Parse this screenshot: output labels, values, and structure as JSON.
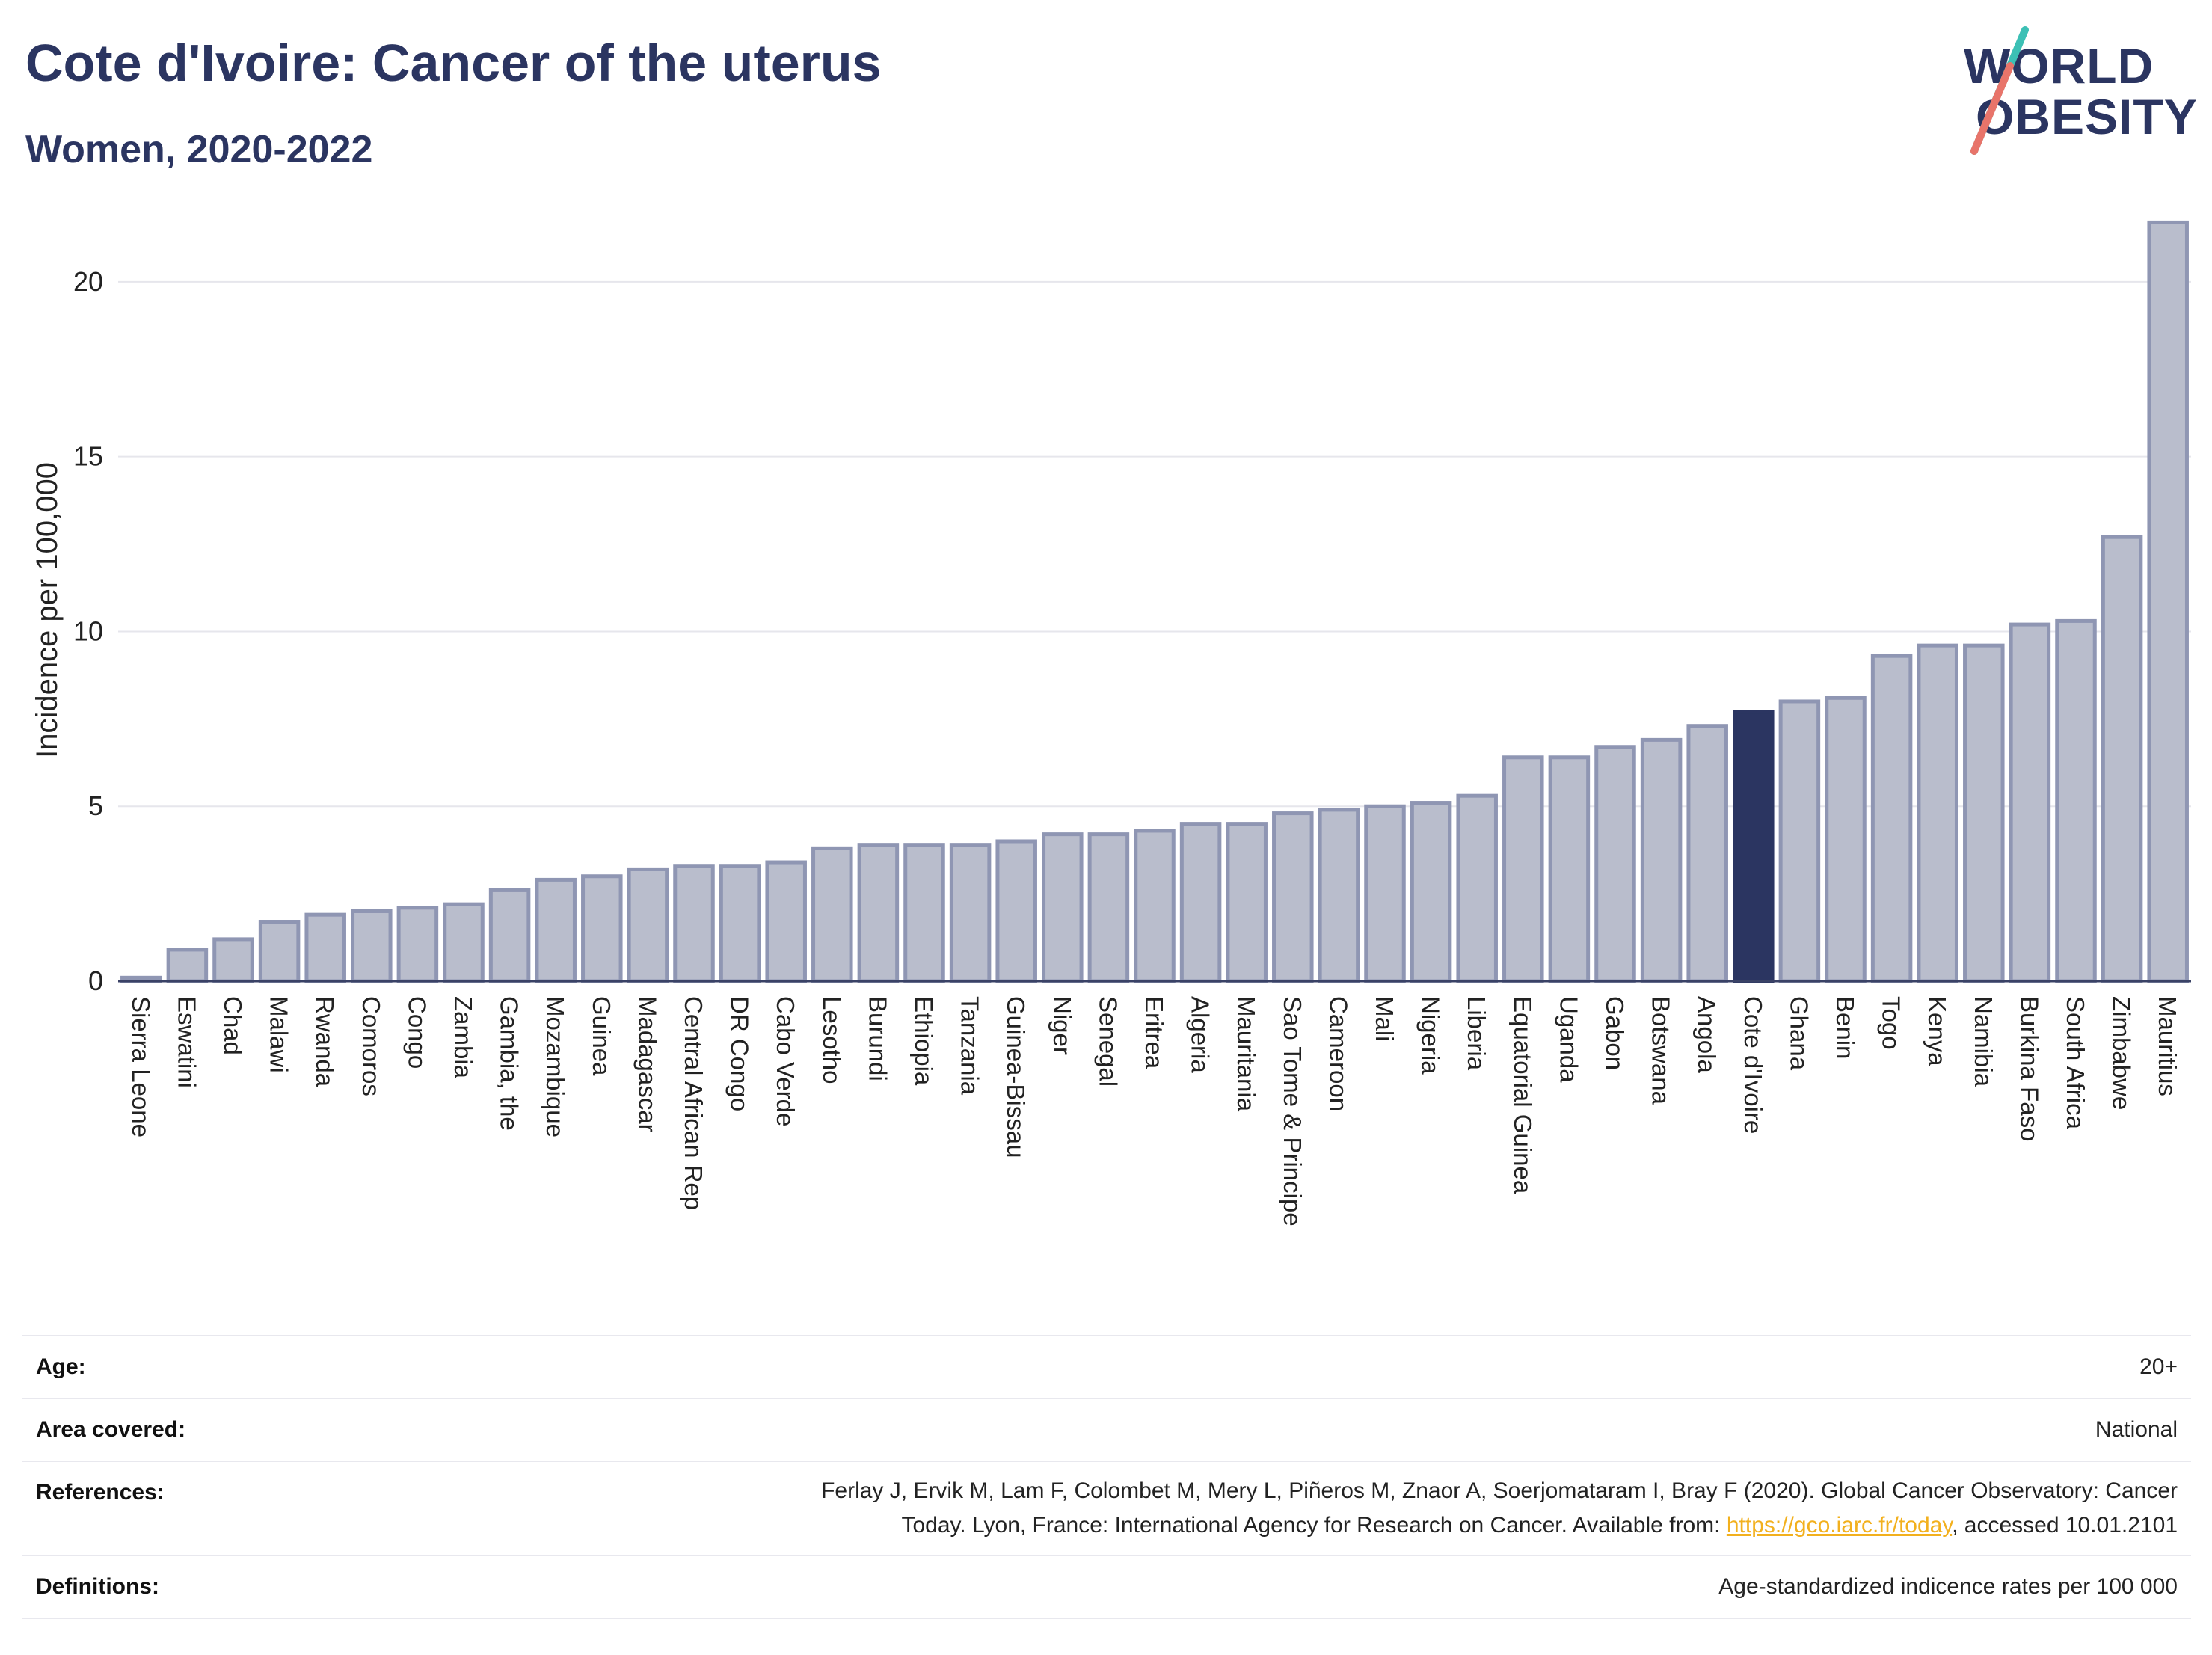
{
  "header": {
    "title": "Cote d'Ivoire: Cancer of the uterus",
    "subtitle": "Women, 2020-2022"
  },
  "logo": {
    "line1": "WORLD",
    "line2": "OBESITY"
  },
  "chart_data": {
    "type": "bar",
    "ylabel": "Incidence per 100,000",
    "ylim": [
      0,
      22.5
    ],
    "yticks": [
      0,
      5,
      10,
      15,
      20
    ],
    "grid": true,
    "highlight": "Cote d'Ivoire",
    "colors": {
      "bar": "#b9bdcc",
      "bar_edge": "#8f96b3",
      "highlight": "#2b3561",
      "grid": "#e6e6ec"
    },
    "categories": [
      "Sierra Leone",
      "Eswatini",
      "Chad",
      "Malawi",
      "Rwanda",
      "Comoros",
      "Congo",
      "Zambia",
      "Gambia, the",
      "Mozambique",
      "Guinea",
      "Madagascar",
      "Central African Rep",
      "DR Congo",
      "Cabo Verde",
      "Lesotho",
      "Burundi",
      "Ethiopia",
      "Tanzania",
      "Guinea-Bissau",
      "Niger",
      "Senegal",
      "Eritrea",
      "Algeria",
      "Mauritania",
      "Sao Tome & Principe",
      "Cameroon",
      "Mali",
      "Nigeria",
      "Liberia",
      "Equatorial Guinea",
      "Uganda",
      "Gabon",
      "Botswana",
      "Angola",
      "Cote d'Ivoire",
      "Ghana",
      "Benin",
      "Togo",
      "Kenya",
      "Namibia",
      "Burkina Faso",
      "South Africa",
      "Zimbabwe",
      "Mauritius"
    ],
    "values": [
      0.1,
      0.9,
      1.2,
      1.7,
      1.9,
      2.0,
      2.1,
      2.2,
      2.6,
      2.9,
      3.0,
      3.2,
      3.3,
      3.3,
      3.4,
      3.8,
      3.9,
      3.9,
      3.9,
      4.0,
      4.2,
      4.2,
      4.3,
      4.5,
      4.5,
      4.8,
      4.9,
      5.0,
      5.1,
      5.3,
      6.4,
      6.4,
      6.7,
      6.9,
      7.3,
      7.7,
      8.0,
      8.1,
      9.3,
      9.6,
      9.6,
      10.2,
      10.3,
      12.7,
      21.7
    ]
  },
  "meta": {
    "age_label": "Age:",
    "age_value": "20+",
    "area_label": "Area covered:",
    "area_value": "National",
    "refs_label": "References:",
    "refs_line1": "Ferlay J, Ervik M, Lam F, Colombet M, Mery L, Piñeros M, Znaor A, Soerjomataram I, Bray F (2020). Global Cancer Observatory: Cancer",
    "refs_line2_pre": "Today. Lyon, France: International Agency for Research on Cancer. Available from: ",
    "refs_link": "https://gco.iarc.fr/today",
    "refs_line2_post": ", accessed 10.01.2101",
    "defs_label": "Definitions:",
    "defs_value": "Age-standardized indicence rates per 100 000"
  }
}
